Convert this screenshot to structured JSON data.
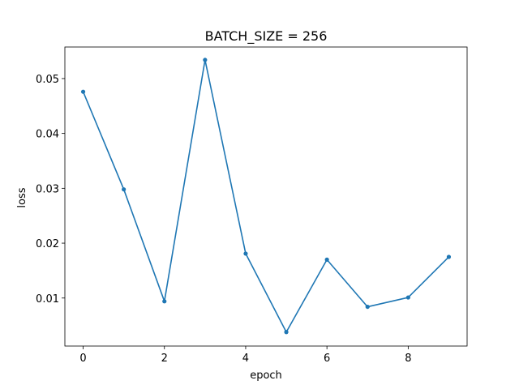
{
  "chart_data": {
    "type": "line",
    "title": "BATCH_SIZE = 256",
    "xlabel": "epoch",
    "ylabel": "loss",
    "xlim": [
      -0.45,
      9.45
    ],
    "ylim": [
      0.00125,
      0.05575
    ],
    "xticks": [
      0,
      2,
      4,
      6,
      8
    ],
    "xtick_labels": [
      "0",
      "2",
      "4",
      "6",
      "8"
    ],
    "yticks": [
      0.01,
      0.02,
      0.03,
      0.04,
      0.05
    ],
    "ytick_labels": [
      "0.01",
      "0.02",
      "0.03",
      "0.04",
      "0.05"
    ],
    "grid": false,
    "legend": false,
    "series": [
      {
        "name": "loss",
        "color": "#1f77b4",
        "marker": "circle",
        "x": [
          0,
          1,
          2,
          3,
          4,
          5,
          6,
          7,
          8,
          9
        ],
        "values": [
          0.0476,
          0.0298,
          0.0094,
          0.0534,
          0.0181,
          0.0038,
          0.017,
          0.0084,
          0.0101,
          0.0175
        ]
      }
    ]
  }
}
